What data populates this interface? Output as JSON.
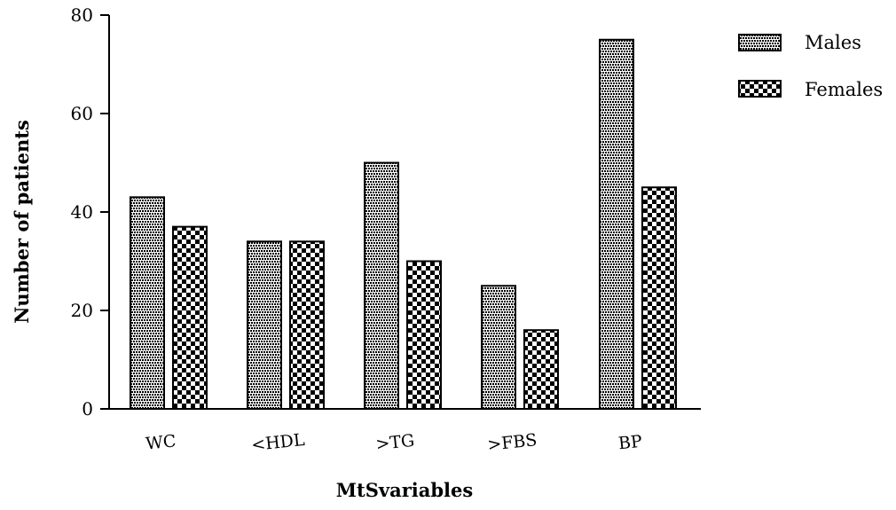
{
  "chart_data": {
    "type": "bar",
    "xlabel": "MtSvariables",
    "ylabel": "Number of patients",
    "ylim": [
      0,
      80
    ],
    "yticks": [
      0,
      20,
      40,
      60,
      80
    ],
    "categories": [
      "WC",
      "<HDL",
      ">TG",
      ">FBS",
      "BP"
    ],
    "series": [
      {
        "name": "Males",
        "values": [
          43,
          34,
          50,
          25,
          75
        ]
      },
      {
        "name": "Females",
        "values": [
          37,
          34,
          30,
          16,
          45
        ]
      }
    ],
    "legend": "top-right",
    "grid": false,
    "colors": {
      "ink": "#000000",
      "paper": "#ffffff"
    }
  }
}
